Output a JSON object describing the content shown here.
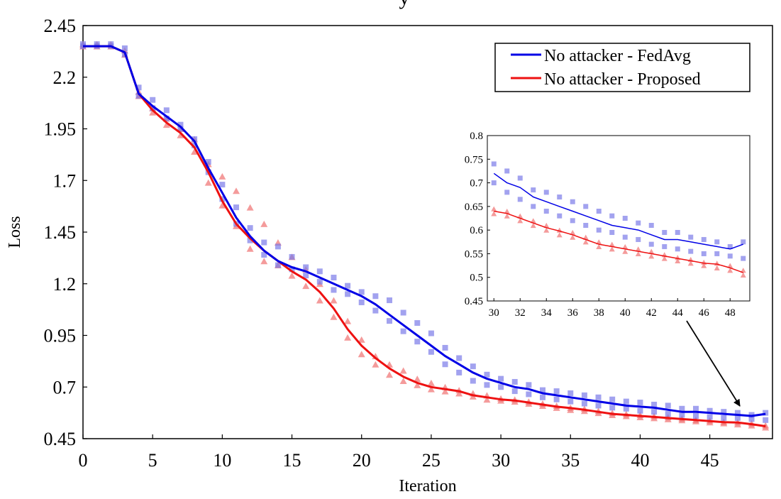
{
  "chart_data": {
    "type": "line",
    "title": "y",
    "xlabel": "Iteration",
    "ylabel": "Loss",
    "xlim": [
      0,
      49.5
    ],
    "ylim": [
      0.45,
      2.45
    ],
    "xticks": [
      0,
      5,
      10,
      15,
      20,
      25,
      30,
      35,
      40,
      45
    ],
    "yticks": [
      0.45,
      0.7,
      0.95,
      1.2,
      1.45,
      1.7,
      1.95,
      2.2,
      2.45
    ],
    "ytick_labels": [
      "0.45",
      "0.7",
      "0.95",
      "1.2",
      "1.45",
      "1.7",
      "1.95",
      "2.2",
      "2.45"
    ],
    "legend": "top-right",
    "colors": {
      "fedavg": "#0000e6",
      "proposed": "#ee1111",
      "fedavg_marker": "#7a7ae8",
      "proposed_marker": "#f07070"
    },
    "x": [
      0,
      1,
      2,
      3,
      4,
      5,
      6,
      7,
      8,
      9,
      10,
      11,
      12,
      13,
      14,
      15,
      16,
      17,
      18,
      19,
      20,
      21,
      22,
      23,
      24,
      25,
      26,
      27,
      28,
      29,
      30,
      31,
      32,
      33,
      34,
      35,
      36,
      37,
      38,
      39,
      40,
      41,
      42,
      43,
      44,
      45,
      46,
      47,
      48,
      49
    ],
    "series": [
      {
        "name": "No attacker - FedAvg",
        "values": [
          2.35,
          2.35,
          2.35,
          2.32,
          2.12,
          2.06,
          2.01,
          1.96,
          1.89,
          1.76,
          1.64,
          1.52,
          1.43,
          1.36,
          1.31,
          1.28,
          1.26,
          1.23,
          1.2,
          1.17,
          1.14,
          1.1,
          1.05,
          1.0,
          0.95,
          0.9,
          0.85,
          0.81,
          0.77,
          0.74,
          0.72,
          0.7,
          0.69,
          0.67,
          0.66,
          0.65,
          0.64,
          0.63,
          0.62,
          0.61,
          0.605,
          0.6,
          0.59,
          0.58,
          0.58,
          0.575,
          0.57,
          0.565,
          0.56,
          0.57
        ],
        "markers_upper": [
          2.36,
          2.36,
          2.36,
          2.34,
          2.15,
          2.09,
          2.04,
          1.97,
          1.9,
          1.79,
          1.68,
          1.57,
          1.47,
          1.4,
          1.38,
          1.33,
          1.28,
          1.26,
          1.23,
          1.19,
          1.16,
          1.14,
          1.12,
          1.06,
          1.01,
          0.96,
          0.89,
          0.84,
          0.8,
          0.76,
          0.74,
          0.725,
          0.71,
          0.685,
          0.68,
          0.67,
          0.66,
          0.65,
          0.64,
          0.63,
          0.625,
          0.615,
          0.61,
          0.595,
          0.595,
          0.585,
          0.58,
          0.575,
          0.565,
          0.575
        ],
        "markers_lower": [
          2.35,
          2.35,
          2.35,
          2.31,
          2.11,
          2.05,
          2.0,
          1.95,
          1.87,
          1.74,
          1.61,
          1.49,
          1.41,
          1.34,
          1.29,
          1.27,
          1.24,
          1.21,
          1.17,
          1.15,
          1.11,
          1.07,
          1.02,
          0.97,
          0.92,
          0.87,
          0.81,
          0.77,
          0.73,
          0.71,
          0.7,
          0.68,
          0.665,
          0.65,
          0.64,
          0.63,
          0.62,
          0.61,
          0.6,
          0.595,
          0.585,
          0.58,
          0.57,
          0.565,
          0.56,
          0.555,
          0.55,
          0.55,
          0.545,
          0.54
        ]
      },
      {
        "name": "No attacker - Proposed",
        "values": [
          2.35,
          2.35,
          2.35,
          2.32,
          2.12,
          2.04,
          1.98,
          1.93,
          1.86,
          1.74,
          1.6,
          1.49,
          1.42,
          1.36,
          1.31,
          1.26,
          1.22,
          1.16,
          1.08,
          0.98,
          0.9,
          0.84,
          0.79,
          0.75,
          0.72,
          0.7,
          0.69,
          0.68,
          0.66,
          0.65,
          0.64,
          0.635,
          0.625,
          0.615,
          0.605,
          0.598,
          0.59,
          0.58,
          0.57,
          0.565,
          0.56,
          0.555,
          0.55,
          0.545,
          0.54,
          0.535,
          0.53,
          0.528,
          0.52,
          0.51
        ],
        "markers_upper": [
          2.36,
          2.36,
          2.36,
          2.33,
          2.13,
          2.05,
          2.0,
          1.95,
          1.9,
          1.78,
          1.72,
          1.65,
          1.57,
          1.49,
          1.4,
          1.33,
          1.27,
          1.2,
          1.12,
          1.02,
          0.93,
          0.85,
          0.81,
          0.78,
          0.74,
          0.72,
          0.7,
          0.685,
          0.67,
          0.66,
          0.645,
          0.64,
          0.63,
          0.62,
          0.61,
          0.6,
          0.595,
          0.585,
          0.575,
          0.57,
          0.565,
          0.56,
          0.555,
          0.548,
          0.542,
          0.538,
          0.532,
          0.53,
          0.525,
          0.515
        ],
        "markers_lower": [
          2.35,
          2.35,
          2.35,
          2.31,
          2.11,
          2.03,
          1.97,
          1.92,
          1.84,
          1.69,
          1.58,
          1.48,
          1.37,
          1.31,
          1.29,
          1.24,
          1.19,
          1.12,
          1.04,
          0.94,
          0.86,
          0.81,
          0.76,
          0.73,
          0.71,
          0.69,
          0.68,
          0.67,
          0.655,
          0.64,
          0.635,
          0.63,
          0.62,
          0.61,
          0.6,
          0.59,
          0.585,
          0.575,
          0.565,
          0.56,
          0.555,
          0.55,
          0.545,
          0.54,
          0.535,
          0.53,
          0.525,
          0.52,
          0.515,
          0.505
        ]
      }
    ],
    "inset": {
      "xlim": [
        29.5,
        49.5
      ],
      "ylim": [
        0.45,
        0.8
      ],
      "xticks": [
        30,
        32,
        34,
        36,
        38,
        40,
        42,
        44,
        46,
        48
      ],
      "yticks": [
        0.45,
        0.5,
        0.55,
        0.6,
        0.65,
        0.7,
        0.75,
        0.8
      ],
      "ytick_labels": [
        "0.45",
        "0.5",
        "0.55",
        "0.6",
        "0.65",
        "0.7",
        "0.75",
        "0.8"
      ],
      "x_from": 30
    },
    "annotation": {
      "type": "arrow",
      "from": "inset",
      "to": [
        47.5,
        0.58
      ]
    }
  }
}
